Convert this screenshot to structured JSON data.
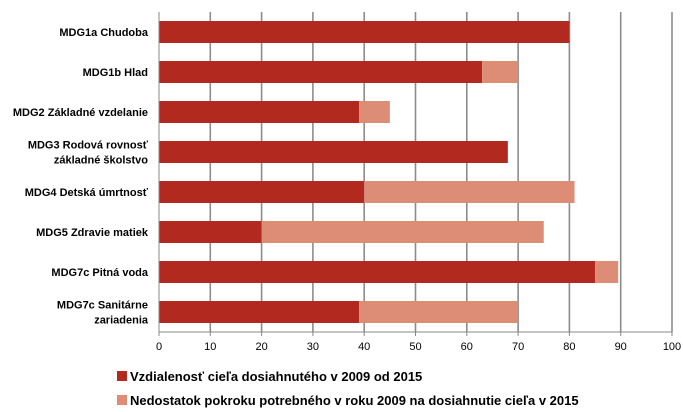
{
  "chart_data": {
    "type": "bar",
    "orientation": "horizontal",
    "stacked": true,
    "categories": [
      [
        "MDG1a Chudoba"
      ],
      [
        "MDG1b Hlad"
      ],
      [
        "MDG2 Základné vzdelanie"
      ],
      [
        "MDG3 Rodová rovnosť",
        "základné školstvo"
      ],
      [
        "MDG4 Detská úmrtnosť"
      ],
      [
        "MDG5 Zdravie matiek"
      ],
      [
        "MDG7c Pitná voda"
      ],
      [
        "MDG7c Sanitárne",
        "zariadenia"
      ]
    ],
    "series": [
      {
        "name": "Vzdialenosť cieľa dosiahnutého v 2009 od 2015",
        "color": "#b22a1f",
        "values": [
          80,
          63,
          39,
          68,
          40,
          20,
          85,
          39
        ]
      },
      {
        "name": "Nedostatok pokroku potrebného v roku 2009 na dosiahnutie cieľa v 2015",
        "color": "#dd8c76",
        "values": [
          0,
          7,
          6,
          0,
          41,
          55,
          4.5,
          31
        ]
      }
    ],
    "xlim": [
      0,
      100
    ],
    "xticks": [
      "0",
      "10",
      "20",
      "30",
      "40",
      "50",
      "60",
      "70",
      "80",
      "90",
      "100"
    ],
    "grid": true,
    "legend_position": "bottom"
  }
}
